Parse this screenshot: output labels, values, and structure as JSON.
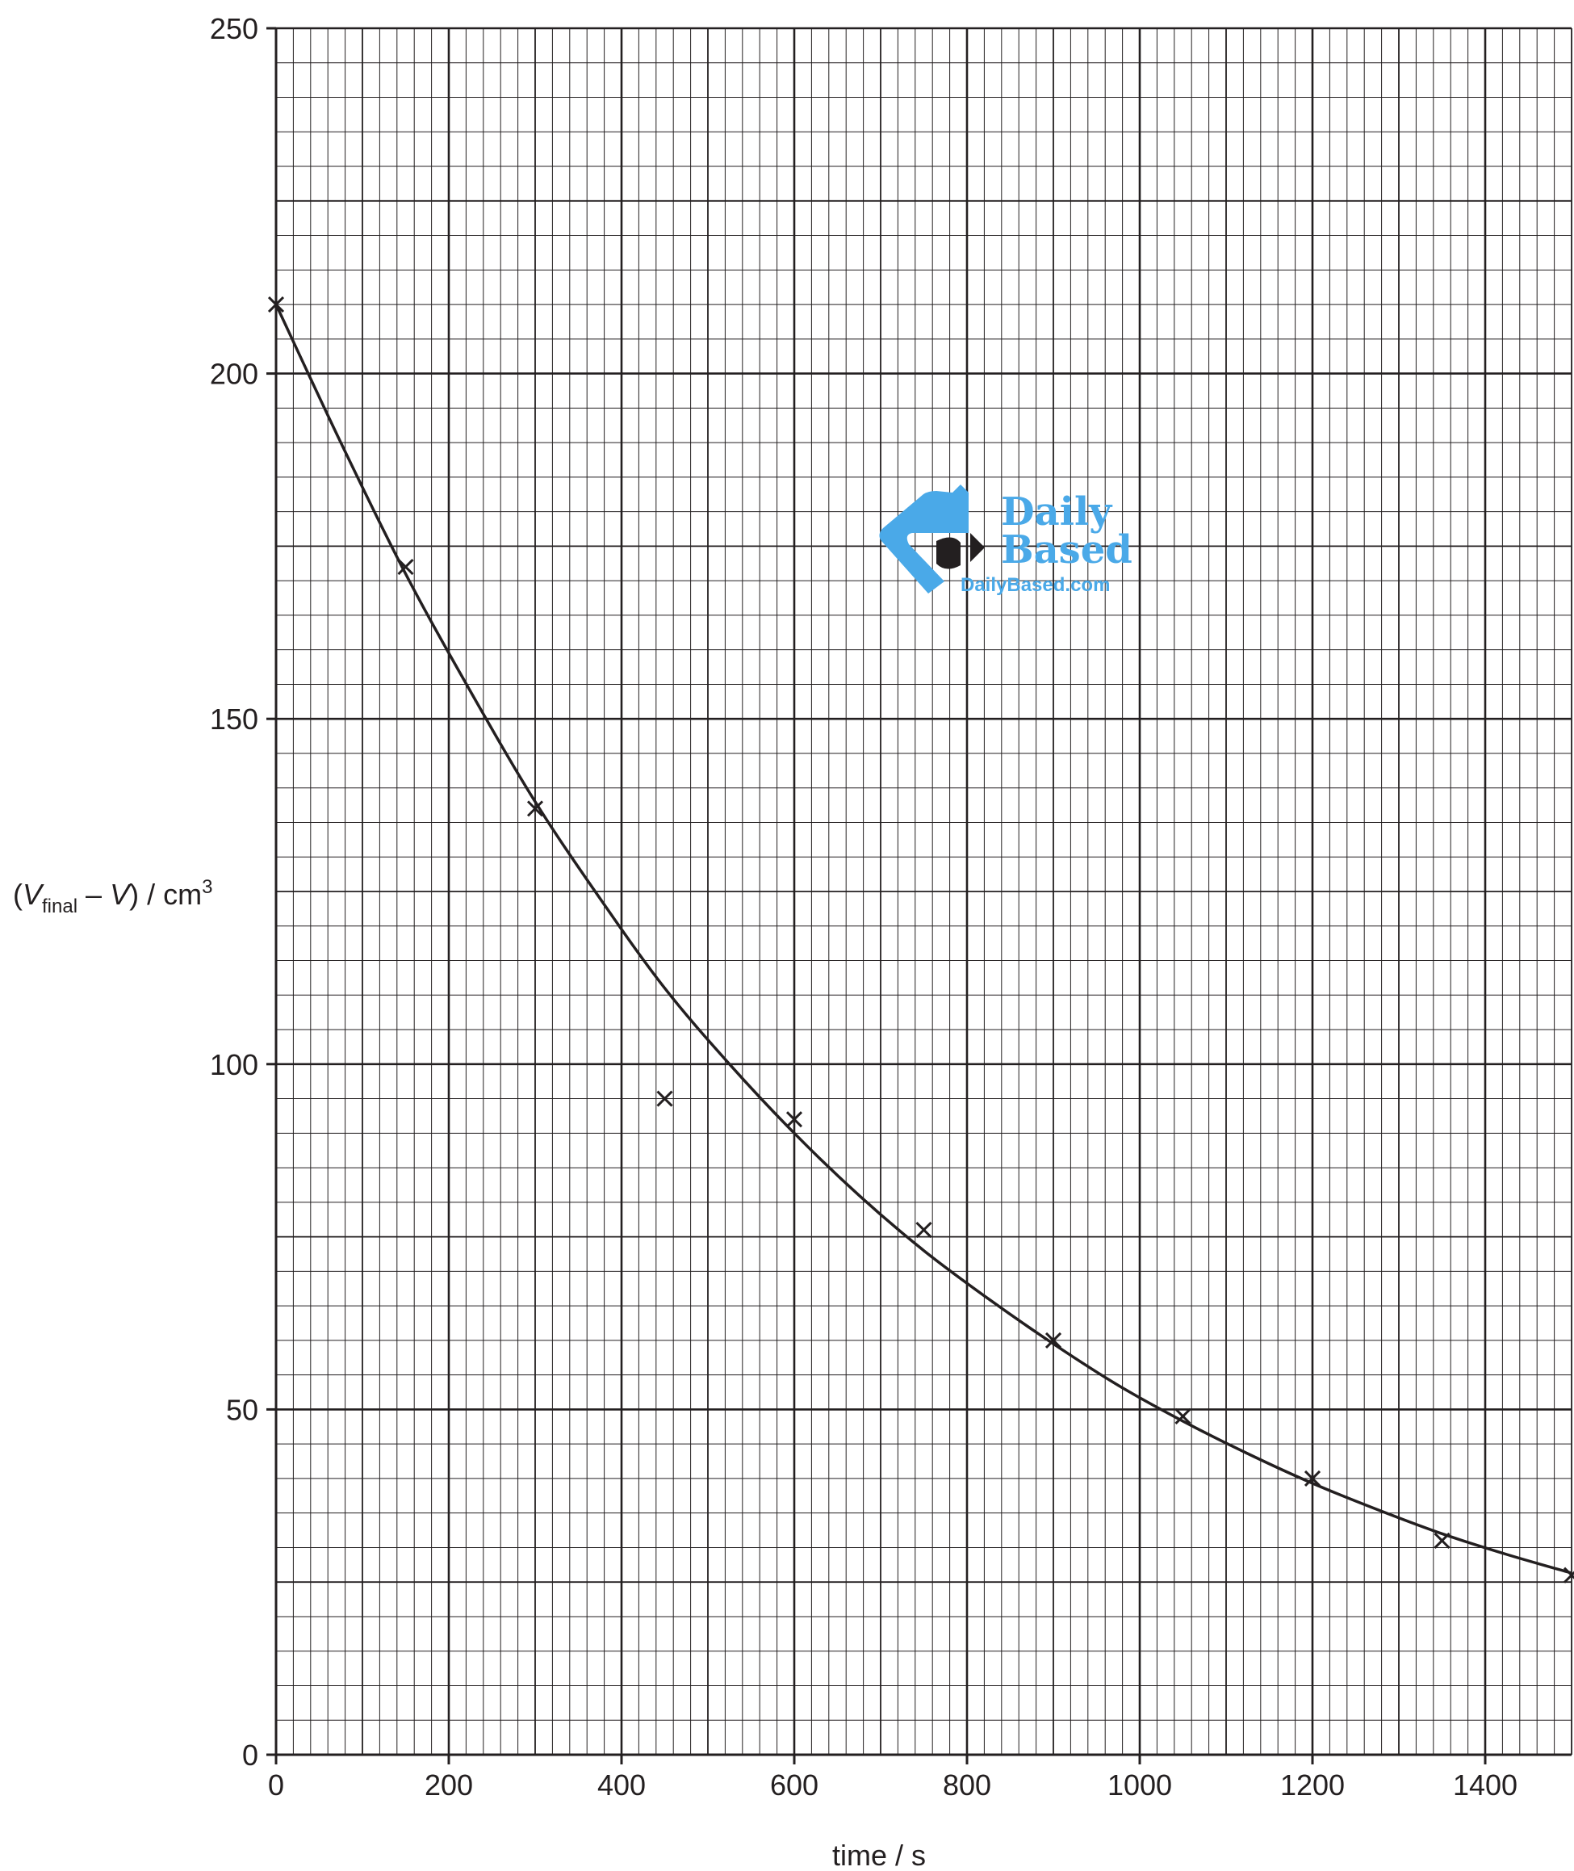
{
  "chart_data": {
    "type": "scatter",
    "title": "",
    "xlabel": "time / s",
    "ylabel": {
      "open": "(",
      "var": "V",
      "sub": "final",
      "middle": " – ",
      "var2": "V",
      "close": ") / cm",
      "sup": "3"
    },
    "xlim": [
      0,
      1500
    ],
    "ylim": [
      0,
      250
    ],
    "x_ticks": [
      0,
      200,
      400,
      600,
      800,
      1000,
      1200,
      1400
    ],
    "y_ticks": [
      0,
      50,
      100,
      150,
      200,
      250
    ],
    "grid": {
      "major_x": 200,
      "mid_x": 100,
      "minor_x": 20,
      "major_y": 50,
      "mid_y": 25,
      "minor_y": 5
    },
    "series": [
      {
        "marker": "x",
        "x": [
          0,
          150,
          300,
          450,
          600,
          750,
          900,
          1050,
          1200,
          1350,
          1500
        ],
        "y": [
          210,
          172,
          137,
          95,
          92,
          76,
          60,
          49,
          40,
          31,
          26
        ]
      }
    ],
    "curve": {
      "style": "smooth",
      "x": [
        0,
        75,
        150,
        225,
        300,
        375,
        450,
        525,
        600,
        675,
        750,
        825,
        900,
        975,
        1050,
        1125,
        1200,
        1275,
        1350,
        1425,
        1500
      ],
      "y": [
        210,
        190,
        171,
        154,
        138,
        124,
        111,
        100,
        90,
        81,
        73,
        66,
        59.5,
        53.5,
        48.3,
        43.6,
        39.3,
        35.5,
        32,
        29,
        26.3
      ]
    },
    "colors": {
      "ink": "#231f20",
      "grid": "#231f20",
      "watermark": "#4aa9e8"
    }
  },
  "watermark": {
    "line1": "Daily",
    "line2": "Based",
    "line3": "DailyBased.com",
    "icon": "daily-based-logo-icon"
  }
}
